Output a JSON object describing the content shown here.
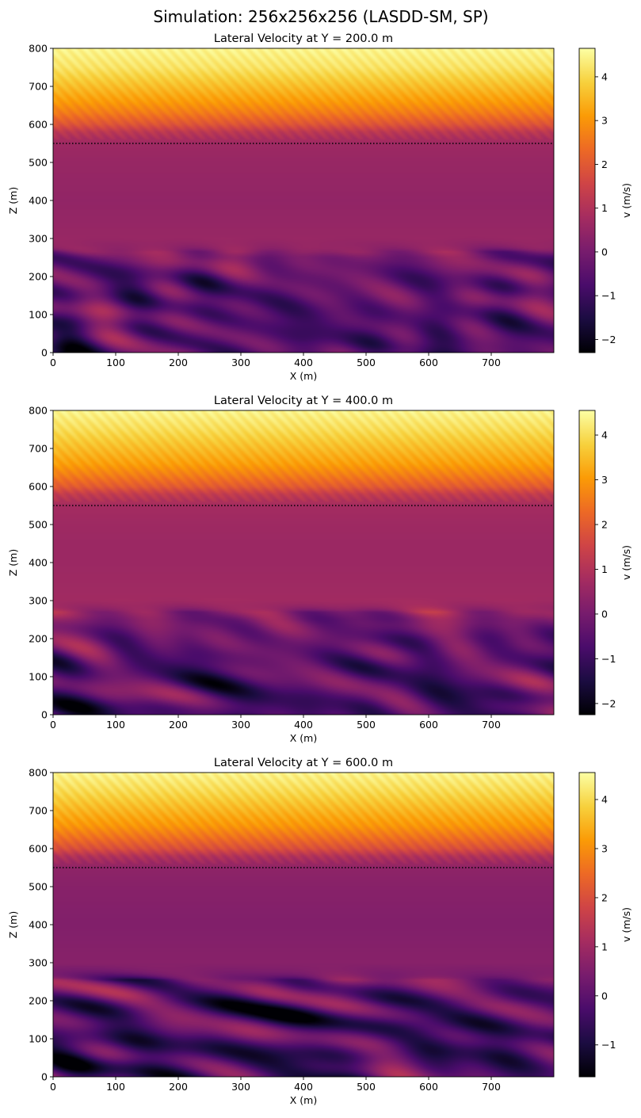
{
  "figure": {
    "suptitle": "Simulation: 256x256x256 (LASDD-SM, SP)"
  },
  "colormap": {
    "name": "inferno",
    "stops": [
      "#000004",
      "#1b0c41",
      "#4a0c6b",
      "#781c6d",
      "#a52c60",
      "#cf4446",
      "#ed6925",
      "#fb9b06",
      "#f7d13d",
      "#fcffa4"
    ]
  },
  "chart_data": [
    {
      "type": "heatmap",
      "title": "Lateral Velocity at Y = 200.0 m",
      "xlabel": "X (m)",
      "ylabel": "Z (m)",
      "xlim": [
        0,
        800
      ],
      "ylim": [
        0,
        800
      ],
      "x_ticks": [
        0,
        100,
        200,
        300,
        400,
        500,
        600,
        700
      ],
      "y_ticks": [
        0,
        100,
        200,
        300,
        400,
        500,
        600,
        700,
        800
      ],
      "colorbar": {
        "label": "v (m/s)",
        "range": [
          -2.3,
          4.65
        ],
        "ticks": [
          -2,
          -1,
          0,
          1,
          2,
          3,
          4
        ]
      },
      "reference_line": {
        "z": 550,
        "style": "dotted"
      },
      "mean_profile": [
        [
          0,
          -0.6
        ],
        [
          100,
          -0.55
        ],
        [
          200,
          -0.35
        ],
        [
          250,
          -0.1
        ],
        [
          275,
          0.4
        ],
        [
          300,
          0.55
        ],
        [
          400,
          0.45
        ],
        [
          450,
          0.5
        ],
        [
          500,
          0.55
        ],
        [
          550,
          0.65
        ],
        [
          580,
          1.2
        ],
        [
          600,
          1.9
        ],
        [
          630,
          2.6
        ],
        [
          660,
          3.1
        ],
        [
          700,
          3.6
        ],
        [
          750,
          4.2
        ],
        [
          800,
          4.5
        ]
      ],
      "boundary_layer_top": 265,
      "turbulence": {
        "amplitude": 1.2,
        "seed": 11
      }
    },
    {
      "type": "heatmap",
      "title": "Lateral Velocity at Y = 400.0 m",
      "xlabel": "X (m)",
      "ylabel": "Z (m)",
      "xlim": [
        0,
        800
      ],
      "ylim": [
        0,
        800
      ],
      "x_ticks": [
        0,
        100,
        200,
        300,
        400,
        500,
        600,
        700
      ],
      "y_ticks": [
        0,
        100,
        200,
        300,
        400,
        500,
        600,
        700,
        800
      ],
      "colorbar": {
        "label": "v (m/s)",
        "range": [
          -2.25,
          4.55
        ],
        "ticks": [
          -2,
          -1,
          0,
          1,
          2,
          3,
          4
        ]
      },
      "reference_line": {
        "z": 550,
        "style": "dotted"
      },
      "mean_profile": [
        [
          0,
          -0.7
        ],
        [
          100,
          -0.6
        ],
        [
          200,
          -0.3
        ],
        [
          250,
          0.0
        ],
        [
          275,
          0.5
        ],
        [
          300,
          0.7
        ],
        [
          400,
          0.6
        ],
        [
          450,
          0.6
        ],
        [
          500,
          0.65
        ],
        [
          550,
          0.75
        ],
        [
          580,
          1.3
        ],
        [
          600,
          2.0
        ],
        [
          630,
          2.6
        ],
        [
          660,
          3.1
        ],
        [
          700,
          3.5
        ],
        [
          750,
          4.0
        ],
        [
          800,
          4.4
        ]
      ],
      "boundary_layer_top": 270,
      "turbulence": {
        "amplitude": 1.1,
        "seed": 23
      }
    },
    {
      "type": "heatmap",
      "title": "Lateral Velocity at Y = 600.0 m",
      "xlabel": "X (m)",
      "ylabel": "Z (m)",
      "xlim": [
        0,
        800
      ],
      "ylim": [
        0,
        800
      ],
      "x_ticks": [
        0,
        100,
        200,
        300,
        400,
        500,
        600,
        700
      ],
      "y_ticks": [
        0,
        100,
        200,
        300,
        400,
        500,
        600,
        700,
        800
      ],
      "colorbar": {
        "label": "v (m/s)",
        "range": [
          -1.65,
          4.55
        ],
        "ticks": [
          -1,
          0,
          1,
          2,
          3,
          4
        ]
      },
      "reference_line": {
        "z": 550,
        "style": "dotted"
      },
      "mean_profile": [
        [
          0,
          -0.3
        ],
        [
          100,
          -0.4
        ],
        [
          200,
          -0.2
        ],
        [
          250,
          0.3
        ],
        [
          275,
          0.5
        ],
        [
          300,
          0.65
        ],
        [
          400,
          0.55
        ],
        [
          450,
          0.6
        ],
        [
          500,
          0.65
        ],
        [
          550,
          0.75
        ],
        [
          580,
          1.3
        ],
        [
          600,
          2.0
        ],
        [
          630,
          2.6
        ],
        [
          660,
          3.1
        ],
        [
          700,
          3.5
        ],
        [
          750,
          4.0
        ],
        [
          800,
          4.4
        ]
      ],
      "boundary_layer_top": 255,
      "turbulence": {
        "amplitude": 0.9,
        "seed": 37
      }
    }
  ]
}
